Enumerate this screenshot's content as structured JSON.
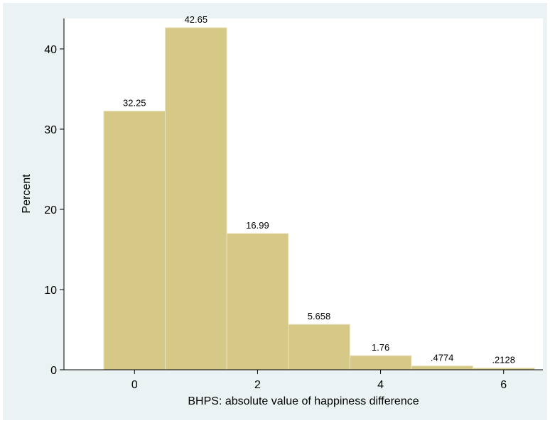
{
  "chart_data": {
    "type": "bar",
    "title": "",
    "xlabel": "BHPS: absolute value of happiness difference",
    "ylabel": "Percent",
    "categories": [
      "0",
      "1",
      "2",
      "3",
      "4",
      "5",
      "6"
    ],
    "x": [
      0,
      1,
      2,
      3,
      4,
      5,
      6
    ],
    "values": [
      32.25,
      42.65,
      16.99,
      5.658,
      1.76,
      0.4774,
      0.2128
    ],
    "value_labels": [
      "32.25",
      "42.65",
      "16.99",
      "5.658",
      "1.76",
      ".4774",
      ".2128"
    ],
    "bin_width": 1,
    "xlim": [
      -0.5,
      6.5
    ],
    "ylim": [
      0,
      43.8
    ],
    "xticks": [
      0,
      2,
      4,
      6
    ],
    "xtick_labels": [
      "0",
      "2",
      "4",
      "6"
    ],
    "yticks": [
      0,
      10,
      20,
      30,
      40
    ],
    "ytick_labels": [
      "0",
      "10",
      "20",
      "30",
      "40"
    ],
    "grid": false,
    "legend": "none",
    "colors": {
      "background": "#eaf2f3",
      "plot_area": "#ffffff",
      "bar_fill": "#d6c987",
      "bar_edge": "#ebe3bd",
      "axis": "#000000"
    }
  }
}
